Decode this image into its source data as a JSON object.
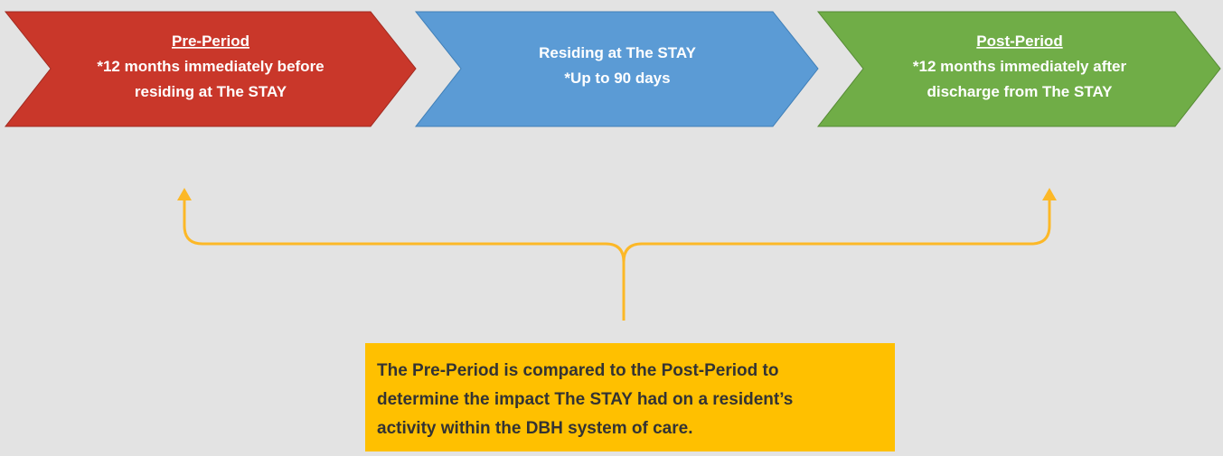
{
  "stages": [
    {
      "title": "Pre-Period",
      "lines": [
        "*12 months immediately before",
        "residing at The STAY"
      ]
    },
    {
      "title": "Residing at The STAY",
      "lines": [
        "*Up to 90 days"
      ]
    },
    {
      "title": "Post-Period",
      "lines": [
        "*12 months immediately after",
        "discharge from The STAY"
      ]
    }
  ],
  "note": {
    "lines": [
      "The Pre-Period is compared to the Post-Period to",
      "determine the impact The STAY had on a resident’s",
      "activity within the DBH system of care."
    ]
  }
}
